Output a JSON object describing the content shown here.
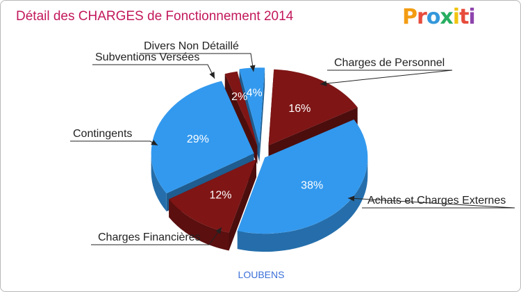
{
  "title": "Détail des CHARGES de Fonctionnement 2014",
  "logo_text": "Proxiti",
  "footer": "LOUBENS",
  "colors": {
    "blue": "#3399ee",
    "red": "#7f1515",
    "title": "#c2185b",
    "footer": "#3a6fd8"
  },
  "chart_data": {
    "type": "pie",
    "title": "Détail des CHARGES de Fonctionnement 2014",
    "labels": [
      "Charges de Personnel",
      "Achats et Charges Externes",
      "Charges Financières",
      "Contingents",
      "Subventions Versées",
      "Divers Non Détaillé"
    ],
    "values": [
      16,
      38,
      12,
      29,
      2,
      4
    ],
    "value_labels": [
      "16%",
      "38%",
      "12%",
      "29%",
      "2%",
      "4%"
    ],
    "colors": [
      "#7f1515",
      "#3399ee",
      "#7f1515",
      "#3399ee",
      "#7f1515",
      "#3399ee"
    ]
  }
}
